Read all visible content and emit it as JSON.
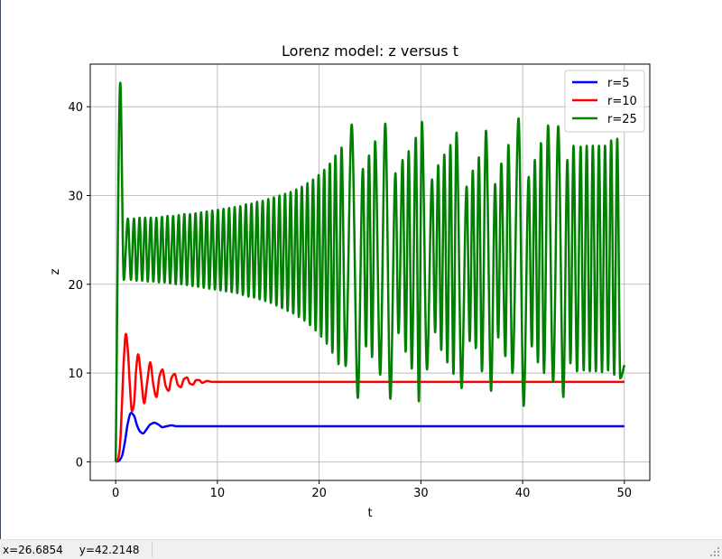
{
  "status_bar": {
    "x_readout": "x=26.6854",
    "y_readout": "y=42.2148"
  },
  "colors": {
    "r5": "#0000ff",
    "r10": "#ff0000",
    "r25": "#008000",
    "grid": "#b0b0b0"
  },
  "chart_data": {
    "type": "line",
    "title": "Lorenz model: z versus t",
    "xlabel": "t",
    "ylabel": "z",
    "xlim": [
      -2.5,
      52.5
    ],
    "ylim": [
      -2.1,
      44.8
    ],
    "xticks": [
      0,
      10,
      20,
      30,
      40,
      50
    ],
    "yticks": [
      0,
      10,
      20,
      30,
      40
    ],
    "grid": true,
    "legend_position": "top-right",
    "series": [
      {
        "name": "r=5",
        "color": "#0000ff",
        "x": [
          0,
          0.3,
          0.6,
          0.9,
          1.2,
          1.5,
          1.8,
          2.1,
          2.4,
          2.7,
          3.0,
          3.4,
          3.8,
          4.2,
          4.6,
          5.0,
          5.5,
          6.0,
          7.0,
          8.0,
          10,
          20,
          30,
          40,
          50
        ],
        "y": [
          0,
          0.1,
          0.6,
          2.2,
          4.4,
          5.5,
          5.2,
          4.1,
          3.4,
          3.2,
          3.6,
          4.2,
          4.4,
          4.2,
          3.9,
          4.0,
          4.1,
          4.0,
          4.0,
          4.0,
          4.0,
          4.0,
          4.0,
          4.0,
          4.0
        ]
      },
      {
        "name": "r=10",
        "color": "#ff0000",
        "x": [
          0,
          0.2,
          0.4,
          0.6,
          0.8,
          1.0,
          1.2,
          1.4,
          1.6,
          1.8,
          2.0,
          2.2,
          2.5,
          2.8,
          3.1,
          3.4,
          3.7,
          4.0,
          4.3,
          4.6,
          4.9,
          5.2,
          5.5,
          5.8,
          6.1,
          6.4,
          6.7,
          7.0,
          7.3,
          7.6,
          7.9,
          8.2,
          8.5,
          9.0,
          9.5,
          10.0,
          11.0,
          12.0,
          20,
          30,
          40,
          50
        ],
        "y": [
          0,
          0.2,
          1.5,
          6.0,
          11.5,
          14.4,
          12.5,
          8.5,
          5.7,
          6.5,
          10.2,
          12.1,
          9.5,
          6.6,
          9.0,
          11.2,
          8.7,
          7.3,
          9.6,
          10.4,
          8.6,
          8.0,
          9.5,
          9.9,
          8.7,
          8.4,
          9.3,
          9.5,
          8.8,
          8.7,
          9.2,
          9.2,
          8.9,
          9.1,
          9.0,
          9.0,
          9.0,
          9.0,
          9.0,
          9.0,
          9.0,
          9.0
        ]
      },
      {
        "name": "r=25",
        "color": "#008000",
        "peaks": [
          [
            0.45,
            42.7
          ],
          [
            1.2,
            27.4
          ],
          [
            1.8,
            27.4
          ],
          [
            2.35,
            27.5
          ],
          [
            2.9,
            27.5
          ],
          [
            3.45,
            27.5
          ],
          [
            4.0,
            27.5
          ],
          [
            4.55,
            27.6
          ],
          [
            5.1,
            27.7
          ],
          [
            5.65,
            27.7
          ],
          [
            6.2,
            27.8
          ],
          [
            6.75,
            27.9
          ],
          [
            7.3,
            27.9
          ],
          [
            7.85,
            28.0
          ],
          [
            8.4,
            28.1
          ],
          [
            8.95,
            28.2
          ],
          [
            9.5,
            28.3
          ],
          [
            10.05,
            28.4
          ],
          [
            10.6,
            28.5
          ],
          [
            11.15,
            28.6
          ],
          [
            11.7,
            28.7
          ],
          [
            12.25,
            28.8
          ],
          [
            12.8,
            29.0
          ],
          [
            13.35,
            29.1
          ],
          [
            13.9,
            29.3
          ],
          [
            14.45,
            29.4
          ],
          [
            15.0,
            29.6
          ],
          [
            15.55,
            29.8
          ],
          [
            16.1,
            30.0
          ],
          [
            16.65,
            30.2
          ],
          [
            17.2,
            30.4
          ],
          [
            17.75,
            30.7
          ],
          [
            18.3,
            31.0
          ],
          [
            18.85,
            31.4
          ],
          [
            19.4,
            31.8
          ],
          [
            19.95,
            32.3
          ],
          [
            20.5,
            32.9
          ],
          [
            21.05,
            33.6
          ],
          [
            21.6,
            34.5
          ],
          [
            22.2,
            35.4
          ],
          [
            23.2,
            38.0
          ],
          [
            24.3,
            33.0
          ],
          [
            24.9,
            34.5
          ],
          [
            25.5,
            36.1
          ],
          [
            26.5,
            38.1
          ],
          [
            27.5,
            32.5
          ],
          [
            28.2,
            34.0
          ],
          [
            28.8,
            35.0
          ],
          [
            29.5,
            36.5
          ],
          [
            30.1,
            38.3
          ],
          [
            31.1,
            31.8
          ],
          [
            31.7,
            33.4
          ],
          [
            32.3,
            34.6
          ],
          [
            32.9,
            35.7
          ],
          [
            33.5,
            37.1
          ],
          [
            34.5,
            31.0
          ],
          [
            35.1,
            32.8
          ],
          [
            35.7,
            34.3
          ],
          [
            36.4,
            37.3
          ],
          [
            37.3,
            31.3
          ],
          [
            37.9,
            33.6
          ],
          [
            38.6,
            35.7
          ],
          [
            39.6,
            38.7
          ],
          [
            40.6,
            32.1
          ],
          [
            41.2,
            34.0
          ],
          [
            41.8,
            35.9
          ],
          [
            42.5,
            37.9
          ],
          [
            43.5,
            37.8
          ],
          [
            44.4,
            34.0
          ],
          [
            45.0,
            35.6
          ],
          [
            45.7,
            35.5
          ],
          [
            46.3,
            35.6
          ],
          [
            46.9,
            35.6
          ],
          [
            47.5,
            35.6
          ],
          [
            48.1,
            35.6
          ],
          [
            48.7,
            36.2
          ],
          [
            49.3,
            36.4
          ]
        ],
        "troughs": [
          [
            0.8,
            20.5
          ],
          [
            1.5,
            20.5
          ],
          [
            2.05,
            20.4
          ],
          [
            2.6,
            20.4
          ],
          [
            3.15,
            20.3
          ],
          [
            3.7,
            20.3
          ],
          [
            4.25,
            20.2
          ],
          [
            4.8,
            20.2
          ],
          [
            5.35,
            20.1
          ],
          [
            5.9,
            20.0
          ],
          [
            6.45,
            20.0
          ],
          [
            7.0,
            19.9
          ],
          [
            7.55,
            19.8
          ],
          [
            8.1,
            19.7
          ],
          [
            8.65,
            19.6
          ],
          [
            9.2,
            19.5
          ],
          [
            9.75,
            19.4
          ],
          [
            10.3,
            19.3
          ],
          [
            10.85,
            19.2
          ],
          [
            11.4,
            19.1
          ],
          [
            11.95,
            19.0
          ],
          [
            12.5,
            18.8
          ],
          [
            13.05,
            18.6
          ],
          [
            13.6,
            18.5
          ],
          [
            14.15,
            18.3
          ],
          [
            14.7,
            18.1
          ],
          [
            15.25,
            17.9
          ],
          [
            15.8,
            17.6
          ],
          [
            16.35,
            17.3
          ],
          [
            16.9,
            17.0
          ],
          [
            17.45,
            16.7
          ],
          [
            18.0,
            16.3
          ],
          [
            18.55,
            15.9
          ],
          [
            19.1,
            15.4
          ],
          [
            19.65,
            14.8
          ],
          [
            20.2,
            14.1
          ],
          [
            20.75,
            13.3
          ],
          [
            21.3,
            12.3
          ],
          [
            21.9,
            11.0
          ],
          [
            22.6,
            10.8
          ],
          [
            23.8,
            7.2
          ],
          [
            24.6,
            13.0
          ],
          [
            25.2,
            11.8
          ],
          [
            26.0,
            9.8
          ],
          [
            27.0,
            7.1
          ],
          [
            27.8,
            14.5
          ],
          [
            28.5,
            12.4
          ],
          [
            29.1,
            10.5
          ],
          [
            29.8,
            6.8
          ],
          [
            30.6,
            10.4
          ],
          [
            31.4,
            14.6
          ],
          [
            32.0,
            12.6
          ],
          [
            32.6,
            11.2
          ],
          [
            33.2,
            9.9
          ],
          [
            34.0,
            8.3
          ],
          [
            34.8,
            13.6
          ],
          [
            35.4,
            12.8
          ],
          [
            36.0,
            10.2
          ],
          [
            36.9,
            8.0
          ],
          [
            37.6,
            14.0
          ],
          [
            38.3,
            11.9
          ],
          [
            39.0,
            10.0
          ],
          [
            40.1,
            6.3
          ],
          [
            40.9,
            13.0
          ],
          [
            41.5,
            11.2
          ],
          [
            42.1,
            10.0
          ],
          [
            43.0,
            9.0
          ],
          [
            44.0,
            7.3
          ],
          [
            44.7,
            11.1
          ],
          [
            45.35,
            10.2
          ],
          [
            46.0,
            10.3
          ],
          [
            46.6,
            10.2
          ],
          [
            47.2,
            10.2
          ],
          [
            47.8,
            10.1
          ],
          [
            48.4,
            10.3
          ],
          [
            49.0,
            9.8
          ],
          [
            49.6,
            9.4
          ]
        ],
        "start": [
          0,
          0
        ],
        "end": [
          50,
          10.9
        ]
      }
    ]
  }
}
